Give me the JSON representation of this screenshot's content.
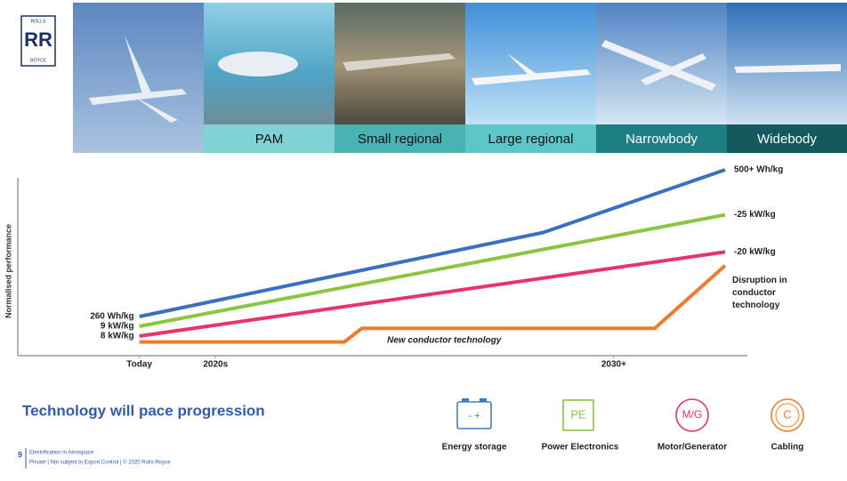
{
  "header": {
    "logo": {
      "top": "ROLLS",
      "mark": "RR",
      "bottom": "ROYCE"
    },
    "segments": [
      "PAM",
      "Small regional",
      "Large regional",
      "Narrowbody",
      "Widebody"
    ]
  },
  "chart_data": {
    "type": "line",
    "ylabel": "Normalised performance",
    "xlim": [
      -20,
      100
    ],
    "ylim": [
      0,
      100
    ],
    "xticks": [
      {
        "value": 0,
        "label": "Today"
      },
      {
        "value": 13,
        "label": "2020s"
      },
      {
        "value": 81,
        "label": "2030+"
      }
    ],
    "series": [
      {
        "color": "#3a6fc4",
        "x": [
          0,
          69,
          100
        ],
        "values": [
          20,
          63,
          95
        ],
        "start_label": "260 Wh/kg",
        "end_label": "500+ Wh/kg"
      },
      {
        "color": "#8cc540",
        "x": [
          0,
          100
        ],
        "values": [
          15,
          72
        ],
        "start_label": "9 kW/kg",
        "end_label": "-25 kW/kg"
      },
      {
        "color": "#e8336b",
        "x": [
          0,
          100
        ],
        "values": [
          10,
          53
        ],
        "start_label": "8 kW/kg",
        "end_label": "-20 kW/kg"
      },
      {
        "color": "#f07b2c",
        "x": [
          0,
          35,
          38,
          88,
          100
        ],
        "values": [
          7,
          7,
          14,
          14,
          46
        ],
        "end_label": "Disruption in conductor technology"
      }
    ],
    "annotation": "New conductor technology"
  },
  "summary": {
    "title": "Technology will pace progression",
    "icons": [
      {
        "symbol": "- +",
        "label": "Energy storage"
      },
      {
        "symbol": "PE",
        "label": "Power Electronics"
      },
      {
        "symbol": "M/G",
        "label": "Motor/Generator"
      },
      {
        "symbol": "C",
        "label": "Cabling"
      }
    ]
  },
  "footer": {
    "page": "9",
    "line1": "Electrification in Aerospace",
    "line2": "Private | Not subject to Export Control | © 2020 Rolls-Royce"
  }
}
